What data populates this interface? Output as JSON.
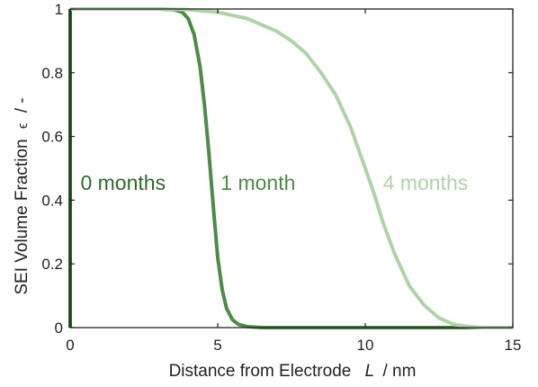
{
  "chart_data": {
    "type": "line",
    "xlabel": {
      "prefix": "Distance from Electrode",
      "symbol": "L",
      "suffix": "/  nm"
    },
    "ylabel": {
      "prefix": "SEI Volume Fraction",
      "symbol": "ϵ",
      "suffix": "/  -"
    },
    "xlim": [
      0,
      15
    ],
    "ylim": [
      0,
      1
    ],
    "x_ticks": [
      {
        "value": 0,
        "label": "0"
      },
      {
        "value": 5,
        "label": "5"
      },
      {
        "value": 10,
        "label": "10"
      },
      {
        "value": 15,
        "label": "15"
      }
    ],
    "y_ticks": [
      {
        "value": 0,
        "label": "0"
      },
      {
        "value": 0.2,
        "label": "0.2"
      },
      {
        "value": 0.4,
        "label": "0.4"
      },
      {
        "value": 0.6,
        "label": "0.6"
      },
      {
        "value": 0.8,
        "label": "0.8"
      },
      {
        "value": 1,
        "label": "1"
      }
    ],
    "grid": false,
    "legend": "none",
    "series": [
      {
        "name": "0 months",
        "color": "#2f6a2f",
        "label_pos": {
          "x": 0.35,
          "y": 0.455
        },
        "points": [
          [
            0,
            0
          ],
          [
            0,
            1
          ],
          [
            0,
            1
          ]
        ]
      },
      {
        "name": "1 month",
        "color": "#4e8a48",
        "label_pos": {
          "x": 5.1,
          "y": 0.455
        },
        "points": [
          [
            0,
            1
          ],
          [
            3.0,
            1
          ],
          [
            3.5,
            0.998
          ],
          [
            3.8,
            0.99
          ],
          [
            4.0,
            0.97
          ],
          [
            4.2,
            0.92
          ],
          [
            4.4,
            0.82
          ],
          [
            4.55,
            0.7
          ],
          [
            4.7,
            0.55
          ],
          [
            4.85,
            0.38
          ],
          [
            5.0,
            0.22
          ],
          [
            5.15,
            0.12
          ],
          [
            5.3,
            0.06
          ],
          [
            5.5,
            0.025
          ],
          [
            5.7,
            0.01
          ],
          [
            6.0,
            0.003
          ],
          [
            6.5,
            0.0
          ],
          [
            15,
            0.0
          ]
        ]
      },
      {
        "name": "4 months",
        "color": "#b0d2a8",
        "label_pos": {
          "x": 10.6,
          "y": 0.455
        },
        "points": [
          [
            0,
            1
          ],
          [
            3.0,
            1
          ],
          [
            4.0,
            0.998
          ],
          [
            5.0,
            0.99
          ],
          [
            6.0,
            0.97
          ],
          [
            7.0,
            0.93
          ],
          [
            7.5,
            0.9
          ],
          [
            8.0,
            0.86
          ],
          [
            8.5,
            0.8
          ],
          [
            9.0,
            0.73
          ],
          [
            9.5,
            0.63
          ],
          [
            10.0,
            0.5
          ],
          [
            10.3,
            0.42
          ],
          [
            10.6,
            0.33
          ],
          [
            11.0,
            0.23
          ],
          [
            11.5,
            0.13
          ],
          [
            12.0,
            0.07
          ],
          [
            12.5,
            0.03
          ],
          [
            13.0,
            0.01
          ],
          [
            13.5,
            0.003
          ],
          [
            14.0,
            0.0
          ],
          [
            15,
            0.0
          ]
        ]
      }
    ]
  }
}
